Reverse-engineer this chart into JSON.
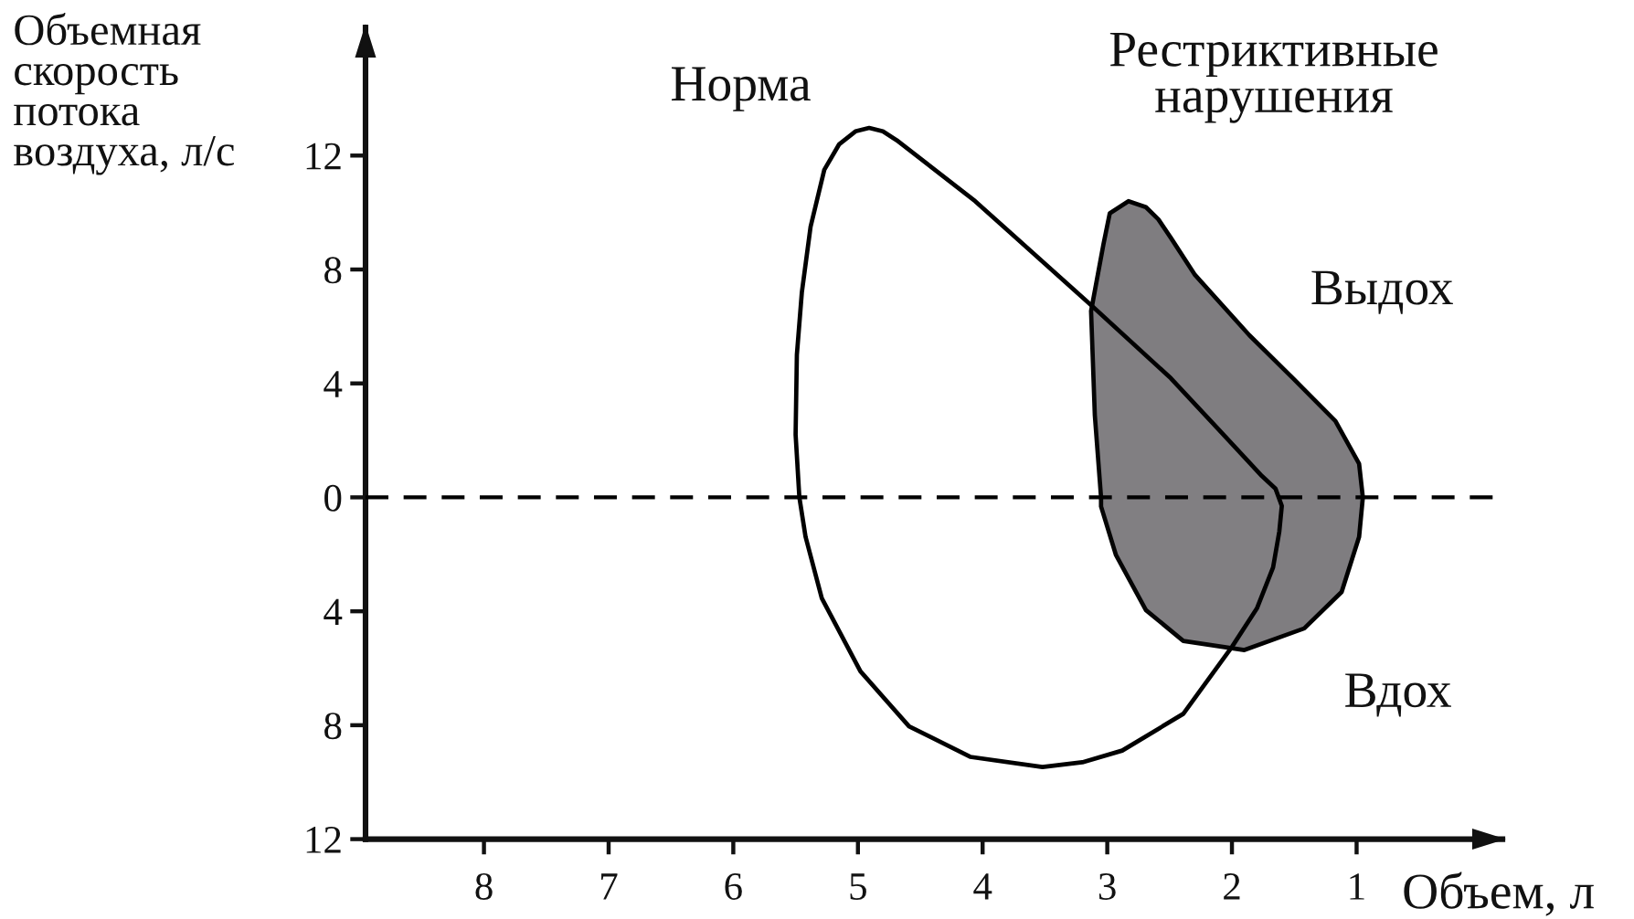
{
  "chart_data": {
    "type": "area",
    "ylabel": "Объемная\nскорость\nпотока\nвоздуха, л/с",
    "xlabel": "Объем, л",
    "annotations": [
      "Выдох",
      "Вдох"
    ],
    "series": [
      {
        "name": "Норма",
        "color": "#ffffff",
        "x": [
          5.5,
          5.49,
          5.45,
          5.38,
          5.27,
          5.15,
          5.02,
          4.91,
          4.8,
          4.69,
          4.06,
          3.13,
          2.49,
          2.1,
          1.76,
          1.65,
          1.6,
          1.62,
          1.67,
          1.8,
          2.0,
          2.39,
          2.88,
          3.2,
          3.52,
          4.1,
          4.59,
          4.98,
          5.29,
          5.42,
          5.47
        ],
        "values": [
          2.2,
          5.0,
          7.2,
          9.5,
          11.5,
          12.4,
          12.85,
          12.97,
          12.85,
          12.54,
          10.4,
          6.75,
          4.18,
          2.35,
          0.75,
          0.3,
          -0.3,
          -1.2,
          -2.46,
          -3.9,
          -5.25,
          -7.6,
          -8.89,
          -9.3,
          -9.47,
          -9.11,
          -8.04,
          -6.11,
          -3.54,
          -1.39,
          0
        ]
      },
      {
        "name": "Рестриктивные\nнарушения",
        "color": "#7f7d80",
        "x": [
          3.05,
          3.1,
          3.13,
          3.03,
          2.98,
          2.83,
          2.69,
          2.59,
          2.49,
          2.3,
          1.86,
          1.51,
          1.17,
          0.98,
          0.95,
          0.98,
          1.12,
          1.42,
          1.9,
          2.39,
          2.69,
          2.93,
          3.05,
          3.05
        ],
        "values": [
          0,
          2.89,
          6.54,
          8.9,
          9.97,
          10.4,
          10.19,
          9.76,
          9.11,
          7.83,
          5.69,
          4.18,
          2.68,
          1.18,
          0,
          -1.39,
          -3.32,
          -4.6,
          -5.36,
          -5.04,
          -3.96,
          -2.03,
          -0.32,
          0
        ]
      }
    ],
    "xlim": [
      8.95,
      -0.17
    ],
    "xticks": [
      8,
      7,
      6,
      5,
      4,
      3,
      2,
      1
    ],
    "ylim": [
      -12,
      16.5
    ],
    "yticks": [
      {
        "value": -12,
        "label": "12"
      },
      {
        "value": -8,
        "label": "8"
      },
      {
        "value": -4,
        "label": "4"
      },
      0,
      4,
      8,
      12
    ],
    "ref_lines": [
      {
        "axis": "y",
        "value": 0,
        "color": "#000000",
        "line_style": "dashed"
      }
    ]
  }
}
